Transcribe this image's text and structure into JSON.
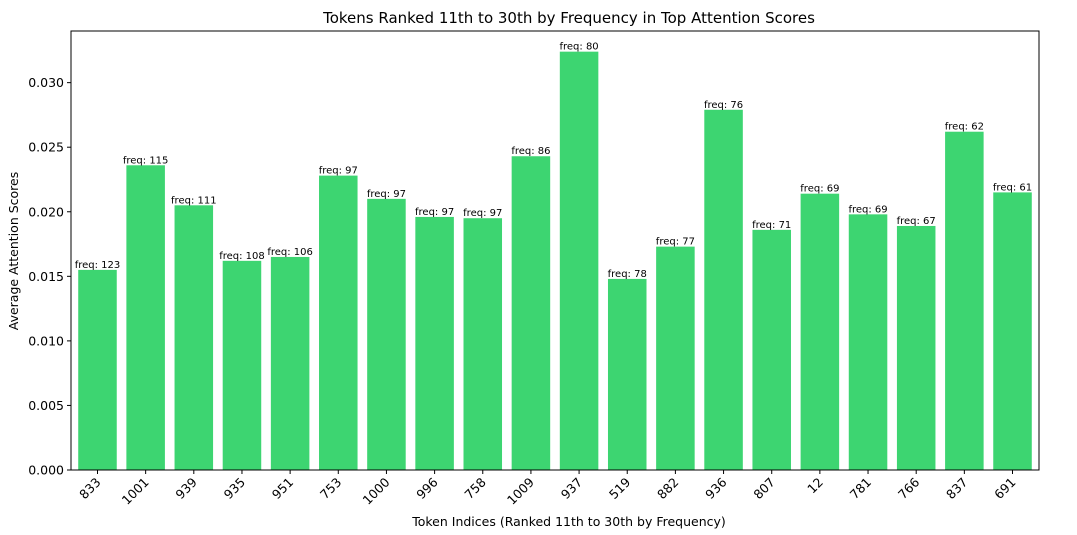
{
  "chart_data": {
    "type": "bar",
    "title": "Tokens Ranked 11th to 30th by Frequency in Top Attention Scores",
    "xlabel": "Token Indices (Ranked 11th to 30th by Frequency)",
    "ylabel": "Average Attention Scores",
    "ylim": [
      0,
      0.034
    ],
    "yticks": [
      "0.000",
      "0.005",
      "0.010",
      "0.015",
      "0.020",
      "0.025",
      "0.030"
    ],
    "bar_color": "#3dd571",
    "categories": [
      "833",
      "1001",
      "939",
      "935",
      "951",
      "753",
      "1000",
      "996",
      "758",
      "1009",
      "937",
      "519",
      "882",
      "936",
      "807",
      "12",
      "781",
      "766",
      "837",
      "691"
    ],
    "values": [
      0.0155,
      0.0236,
      0.0205,
      0.0162,
      0.0165,
      0.0228,
      0.021,
      0.0196,
      0.0195,
      0.0243,
      0.0324,
      0.0148,
      0.0173,
      0.0279,
      0.0186,
      0.0214,
      0.0198,
      0.0189,
      0.0262,
      0.0215
    ],
    "data_labels": [
      "freq: 123",
      "freq: 115",
      "freq: 111",
      "freq: 108",
      "freq: 106",
      "freq: 97",
      "freq: 97",
      "freq: 97",
      "freq: 97",
      "freq: 86",
      "freq: 80",
      "freq: 78",
      "freq: 77",
      "freq: 76",
      "freq: 71",
      "freq: 69",
      "freq: 69",
      "freq: 67",
      "freq: 62",
      "freq: 61"
    ],
    "grid": false,
    "legend": "none"
  }
}
